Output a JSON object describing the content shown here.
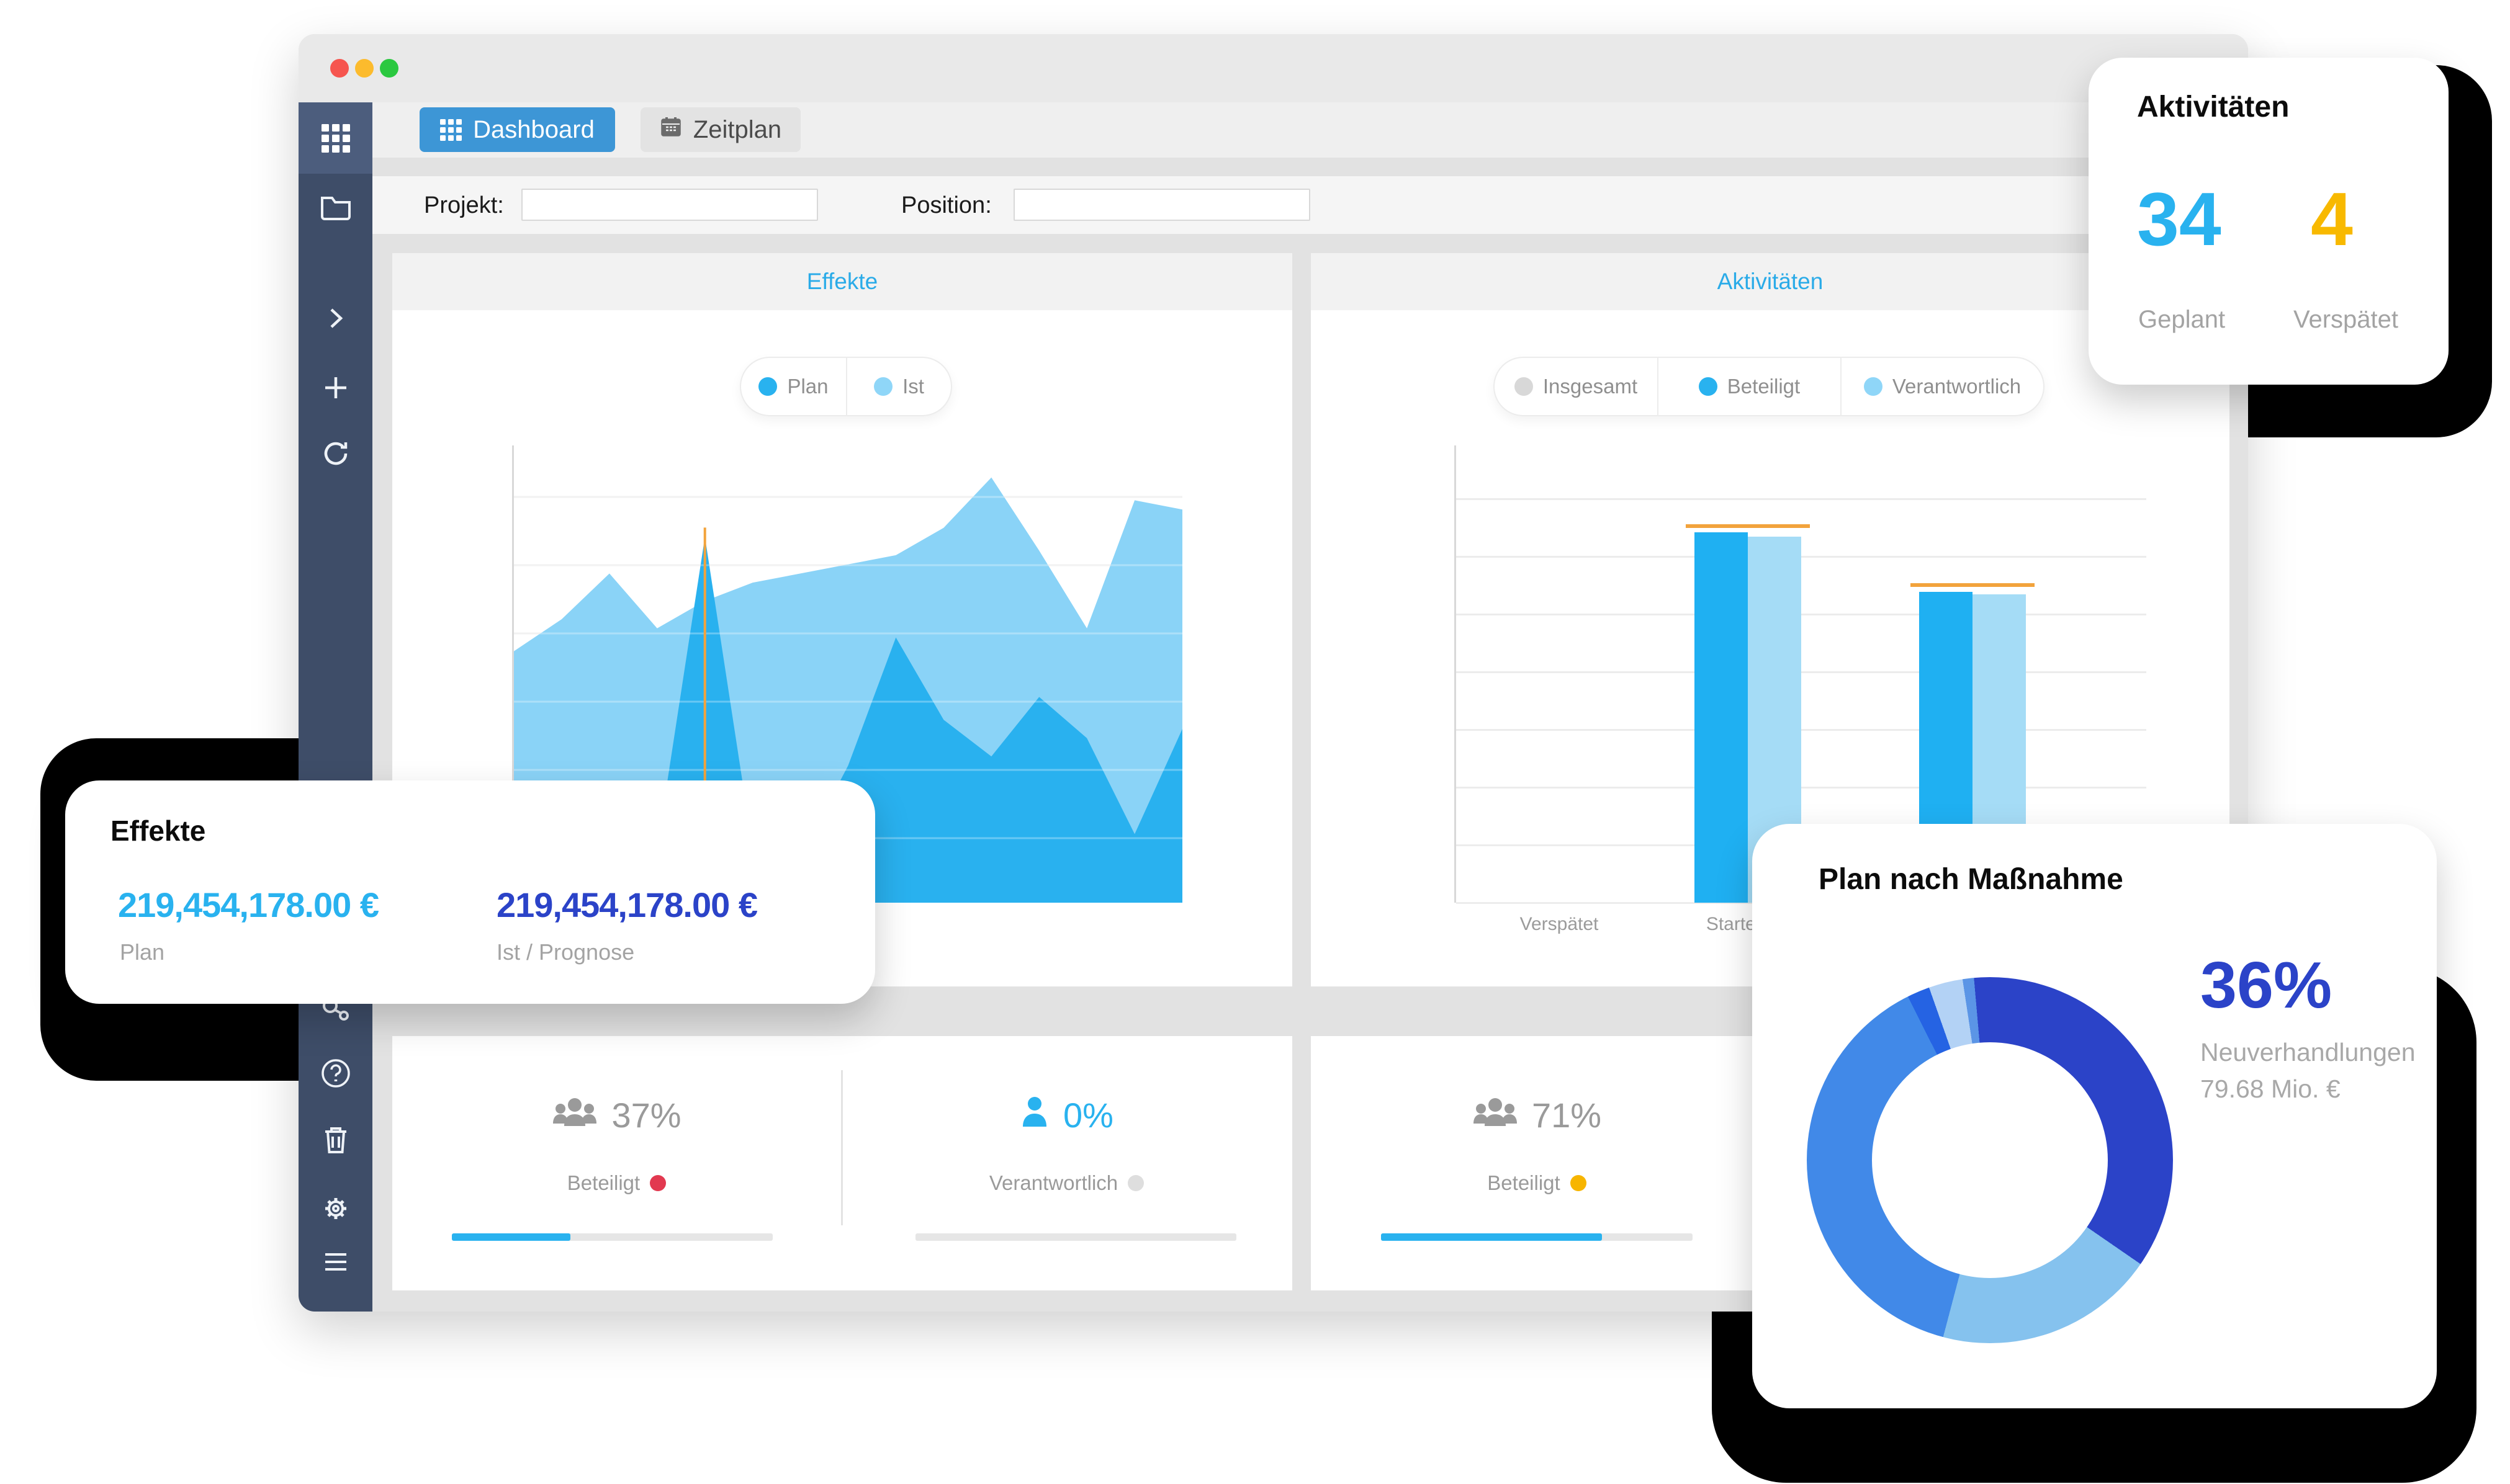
{
  "colors": {
    "accent_blue": "#29b2ef",
    "indigo": "#2b43c8",
    "yellow": "#f8b900",
    "red_dot": "#e23950",
    "gray_dot": "#dedede",
    "orange_marker": "#f2a33c",
    "sidebar": "#3e4d68",
    "active_tab": "#3d96d6"
  },
  "window": {
    "traffic_lights": [
      "close",
      "minimize",
      "zoom"
    ]
  },
  "sidebar": {
    "icons": [
      "apps-grid",
      "folder",
      "chevron-right",
      "plus",
      "refresh",
      "key",
      "help",
      "trash",
      "settings",
      "menu"
    ]
  },
  "tabs": {
    "dashboard": "Dashboard",
    "zeitplan": "Zeitplan"
  },
  "filters": {
    "projekt_label": "Projekt:",
    "projekt_value": "",
    "position_label": "Position:",
    "position_value": ""
  },
  "panels": {
    "effekte": {
      "title": "Effekte",
      "legend": [
        {
          "label": "Plan",
          "color": "#29b2ef"
        },
        {
          "label": "Ist",
          "color": "#8fd6f8"
        }
      ]
    },
    "aktivitaeten": {
      "title": "Aktivitäten",
      "legend": [
        {
          "label": "Insgesamt",
          "color": "#d8d8d8"
        },
        {
          "label": "Beteiligt",
          "color": "#29b2ef"
        },
        {
          "label": "Verantwortlich",
          "color": "#8fd6f8"
        }
      ]
    }
  },
  "stats": [
    {
      "icon": "people-group",
      "pct": "37%",
      "label": "Beteiligt",
      "dot_color": "#e23950",
      "progress": 37
    },
    {
      "icon": "person",
      "pct": "0%",
      "label": "Verantwortlich",
      "dot_color": "#dedede",
      "progress": 0
    },
    {
      "icon": "people-group",
      "pct": "71%",
      "label": "Beteiligt",
      "dot_color": "#f7b500",
      "progress": 71
    }
  ],
  "cards": {
    "aktivitaeten": {
      "title": "Aktivitäten",
      "planned_value": "34",
      "planned_label": "Geplant",
      "late_value": "4",
      "late_label": "Verspätet"
    },
    "effekte": {
      "title": "Effekte",
      "plan_value": "219,454,178.00 €",
      "plan_label": "Plan",
      "ist_value": "219,454,178.00 €",
      "ist_label": "Ist / Prognose"
    },
    "massnahme": {
      "title": "Plan nach Maßnahme",
      "pct": "36%",
      "subtitle": "Neuverhandlungen",
      "amount": "79.68 Mio. €"
    }
  },
  "chart_data": [
    {
      "type": "area",
      "title": "Effekte",
      "legend_position": "top-center",
      "grid": true,
      "ylim": [
        0,
        1
      ],
      "series": [
        {
          "name": "Ist",
          "color": "#8AD3F7",
          "values": [
            0.55,
            0.62,
            0.72,
            0.6,
            0.66,
            0.7,
            0.72,
            0.74,
            0.76,
            0.82,
            0.93,
            0.77,
            0.6,
            0.88,
            0.86
          ]
        },
        {
          "name": "Plan",
          "color": "#29B1EF",
          "values": [
            0.08,
            0.09,
            0.1,
            0.12,
            0.8,
            0.12,
            0.1,
            0.3,
            0.58,
            0.4,
            0.32,
            0.45,
            0.36,
            0.15,
            0.38
          ]
        }
      ],
      "marker": {
        "type": "vline",
        "x_index": 4,
        "color": "#F2A33C"
      }
    },
    {
      "type": "bar",
      "title": "Aktivitäten",
      "legend_position": "top-center",
      "grid": true,
      "ylim": [
        0,
        1
      ],
      "categories": [
        "Verspätet",
        "Startet",
        ""
      ],
      "series": [
        {
          "name": "Beteiligt",
          "color": "#1FB0F2",
          "values": [
            0,
            0.81,
            0.68
          ]
        },
        {
          "name": "Verantwortlich",
          "color": "#A5DCF6",
          "values": [
            0,
            0.8,
            0.675
          ]
        }
      ],
      "target_markers": {
        "color": "#F2A33C",
        "values": [
          null,
          0.82,
          0.69
        ]
      }
    },
    {
      "type": "donut",
      "title": "Plan nach Maßnahme",
      "start_angle_deg": -5,
      "segments": [
        {
          "label": "Neuverhandlungen",
          "pct": 36,
          "color": "#2b43c8"
        },
        {
          "label": "",
          "pct": 19.5,
          "color": "#85c2ee"
        },
        {
          "label": "",
          "pct": 38.5,
          "color": "#4189e8"
        },
        {
          "label": "",
          "pct": 2,
          "color": "#2563e3"
        },
        {
          "label": "",
          "pct": 3,
          "color": "#b3d2f5"
        },
        {
          "label": "",
          "pct": 1,
          "color": "#5b95e6"
        }
      ],
      "highlight": {
        "pct_label": "36%",
        "label": "Neuverhandlungen",
        "amount": "79.68 Mio. €"
      }
    }
  ]
}
